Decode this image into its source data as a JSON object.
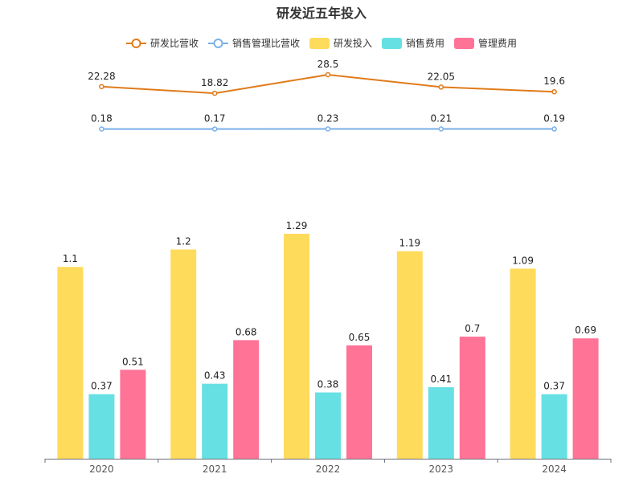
{
  "chart_data": {
    "type": "bar",
    "title": "研发近五年投入",
    "categories": [
      "2020",
      "2021",
      "2022",
      "2023",
      "2024"
    ],
    "bar_series": [
      {
        "name": "研发投入",
        "color": "#FFDB5C",
        "values": [
          1.1,
          1.2,
          1.29,
          1.19,
          1.09
        ]
      },
      {
        "name": "销售费用",
        "color": "#67E0E3",
        "values": [
          0.37,
          0.43,
          0.38,
          0.41,
          0.37
        ]
      },
      {
        "name": "管理费用",
        "color": "#FF7396",
        "values": [
          0.51,
          0.68,
          0.65,
          0.7,
          0.69
        ]
      }
    ],
    "line_series": [
      {
        "name": "研发比营收",
        "color": "#E07B1A",
        "values": [
          22.28,
          18.82,
          28.5,
          22.05,
          19.6
        ]
      },
      {
        "name": "销售管理比营收",
        "color": "#7AB0EA",
        "values": [
          0.18,
          0.17,
          0.23,
          0.21,
          0.19
        ]
      }
    ],
    "legend_order": [
      "研发比营收",
      "销售管理比营收",
      "研发投入",
      "销售费用",
      "管理费用"
    ],
    "legend_position": "top-center",
    "bar_ylim": [
      0,
      1.29
    ],
    "line_ylim": [
      0,
      28.5
    ],
    "grid": false,
    "xlabel": "",
    "ylabel": ""
  }
}
